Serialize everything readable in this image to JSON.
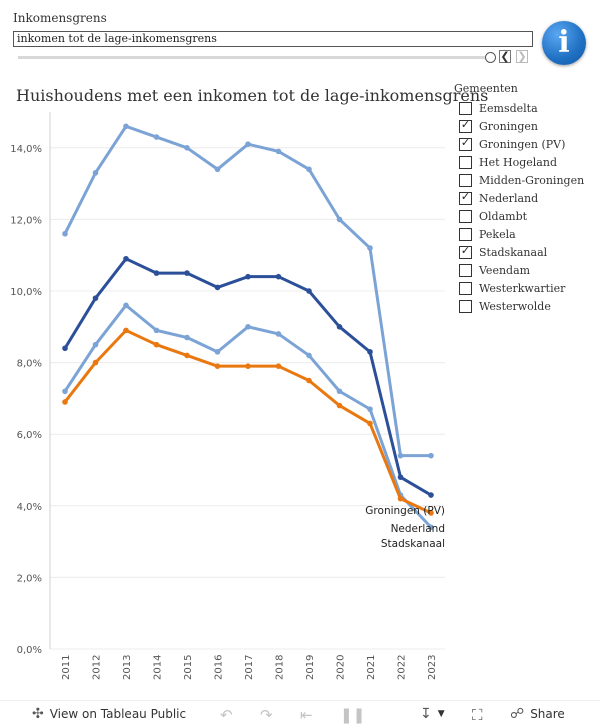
{
  "filter": {
    "label": "Inkomensgrens",
    "value": "inkomen tot de lage-inkomensgrens",
    "prev_icon": "chevron-left-icon",
    "next_icon": "chevron-right-icon"
  },
  "info_icon": "info-icon",
  "legend": {
    "title": "Gemeenten",
    "items": [
      {
        "label": "Eemsdelta",
        "checked": false
      },
      {
        "label": "Groningen",
        "checked": true
      },
      {
        "label": "Groningen (PV)",
        "checked": true
      },
      {
        "label": "Het Hogeland",
        "checked": false
      },
      {
        "label": "Midden-Groningen",
        "checked": false
      },
      {
        "label": "Nederland",
        "checked": true
      },
      {
        "label": "Oldambt",
        "checked": false
      },
      {
        "label": "Pekela",
        "checked": false
      },
      {
        "label": "Stadskanaal",
        "checked": true
      },
      {
        "label": "Veendam",
        "checked": false
      },
      {
        "label": "Westerkwartier",
        "checked": false
      },
      {
        "label": "Westerwolde",
        "checked": false
      }
    ]
  },
  "chart_data": {
    "type": "line",
    "title": "Huishoudens met een inkomen tot de lage-inkomensgrens",
    "xlabel": "",
    "ylabel": "",
    "categories": [
      "2011",
      "2012",
      "2013",
      "2014",
      "2015",
      "2016",
      "2017",
      "2018",
      "2019",
      "2020",
      "2021",
      "2022",
      "2023"
    ],
    "ylim": [
      0,
      15
    ],
    "yticks": [
      0,
      2,
      4,
      6,
      8,
      10,
      12,
      14
    ],
    "ytick_labels": [
      "0,0%",
      "2,0%",
      "4,0%",
      "6,0%",
      "8,0%",
      "10,0%",
      "12,0%",
      "14,0%"
    ],
    "grid": true,
    "series": [
      {
        "name": "Groningen",
        "color": "#7ba3d5",
        "values": [
          11.6,
          13.3,
          14.6,
          14.3,
          14.0,
          13.4,
          14.1,
          13.9,
          13.4,
          12.0,
          11.2,
          5.4,
          5.4
        ]
      },
      {
        "name": "Groningen (PV)",
        "color": "#2b4f98",
        "values": [
          8.4,
          9.8,
          10.9,
          10.5,
          10.5,
          10.1,
          10.4,
          10.4,
          10.0,
          9.0,
          8.3,
          4.8,
          4.3
        ]
      },
      {
        "name": "Stadskanaal",
        "color": "#7ba3d5",
        "values": [
          7.2,
          8.5,
          9.6,
          8.9,
          8.7,
          8.3,
          9.0,
          8.8,
          8.2,
          7.2,
          6.7,
          4.3,
          3.4
        ]
      },
      {
        "name": "Nederland",
        "color": "#e8780f",
        "values": [
          6.9,
          8.0,
          8.9,
          8.5,
          8.2,
          7.9,
          7.9,
          7.9,
          7.5,
          6.8,
          6.3,
          4.2,
          3.8
        ]
      }
    ],
    "end_labels": [
      "Groningen (PV)",
      "Nederland",
      "Stadskanaal"
    ]
  },
  "bottom_bar": {
    "view_label": "View on Tableau Public",
    "share_label": "Share",
    "icons": [
      "tableau-icon",
      "undo-icon",
      "redo-icon",
      "revert-icon",
      "pause-icon",
      "download-icon",
      "fullscreen-icon",
      "share-icon"
    ]
  }
}
